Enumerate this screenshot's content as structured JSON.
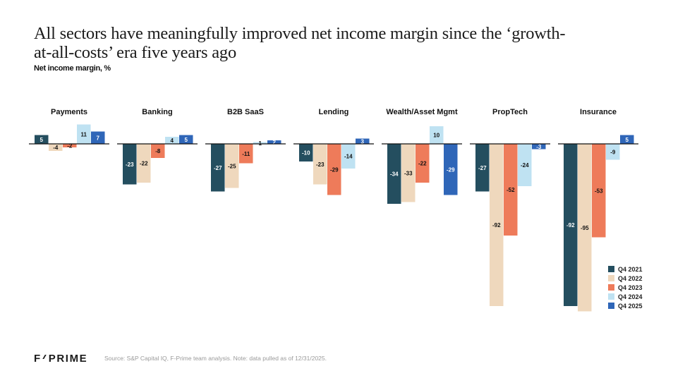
{
  "header": {
    "title": "All sectors have meaningfully improved net income margin since the ‘growth-at-all-costs’ era five years ago",
    "subtitle": "Net income margin, %"
  },
  "footer": {
    "logo_left": "F",
    "logo_right": "PRIME",
    "source": "Source: S&P Capital IQ, F-Prime team analysis. Note: data pulled as of 12/31/2025."
  },
  "chart_data": {
    "type": "bar",
    "title": "Net income margin, %",
    "xlabel": "",
    "ylabel": "Net income margin, %",
    "ylim": [
      -95,
      11
    ],
    "grid": false,
    "legend_position": "bottom-right",
    "series_names": [
      "Q4 2021",
      "Q4 2022",
      "Q4 2023",
      "Q4 2024",
      "Q4 2025"
    ],
    "series_colors": [
      "#244e5f",
      "#efd8bd",
      "#ee7b5a",
      "#bfe2f2",
      "#2f66b8"
    ],
    "label_colors": [
      "#ffffff",
      "#111111",
      "#111111",
      "#111111",
      "#ffffff"
    ],
    "categories": [
      "Payments",
      "Banking",
      "B2B SaaS",
      "Lending",
      "Wealth/Asset Mgmt",
      "PropTech",
      "Insurance"
    ],
    "groups": [
      {
        "name": "Payments",
        "values": [
          5,
          -4,
          -2,
          11,
          7
        ]
      },
      {
        "name": "Banking",
        "values": [
          -23,
          -22,
          -8,
          4,
          5
        ]
      },
      {
        "name": "B2B SaaS",
        "values": [
          -27,
          -25,
          -11,
          1,
          2
        ]
      },
      {
        "name": "Lending",
        "values": [
          -10,
          -23,
          -29,
          -14,
          3
        ]
      },
      {
        "name": "Wealth/Asset Mgmt",
        "values": [
          -34,
          -33,
          -22,
          10,
          -29
        ]
      },
      {
        "name": "PropTech",
        "values": [
          -27,
          -92,
          -52,
          -24,
          -3
        ]
      },
      {
        "name": "Insurance",
        "values": [
          -92,
          -95,
          -53,
          -9,
          5
        ]
      }
    ]
  }
}
